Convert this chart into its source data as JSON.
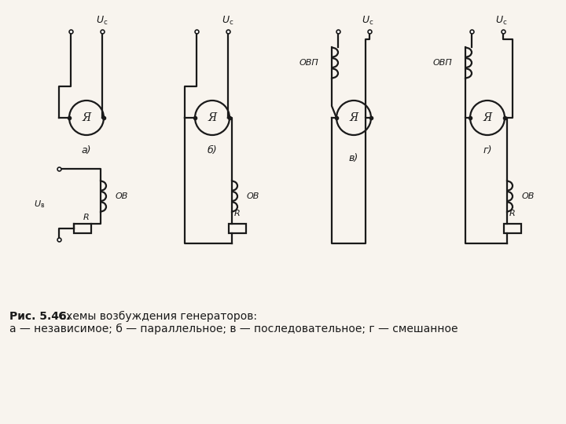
{
  "caption_bold": "Рис. 5.46.",
  "caption_normal": " Схемы возбуждения генераторов:",
  "caption_line2": "а — независимое; б — параллельное; в — последовательное; г — смешанное",
  "bg_color": "#f8f4ee",
  "line_color": "#1a1a1a"
}
